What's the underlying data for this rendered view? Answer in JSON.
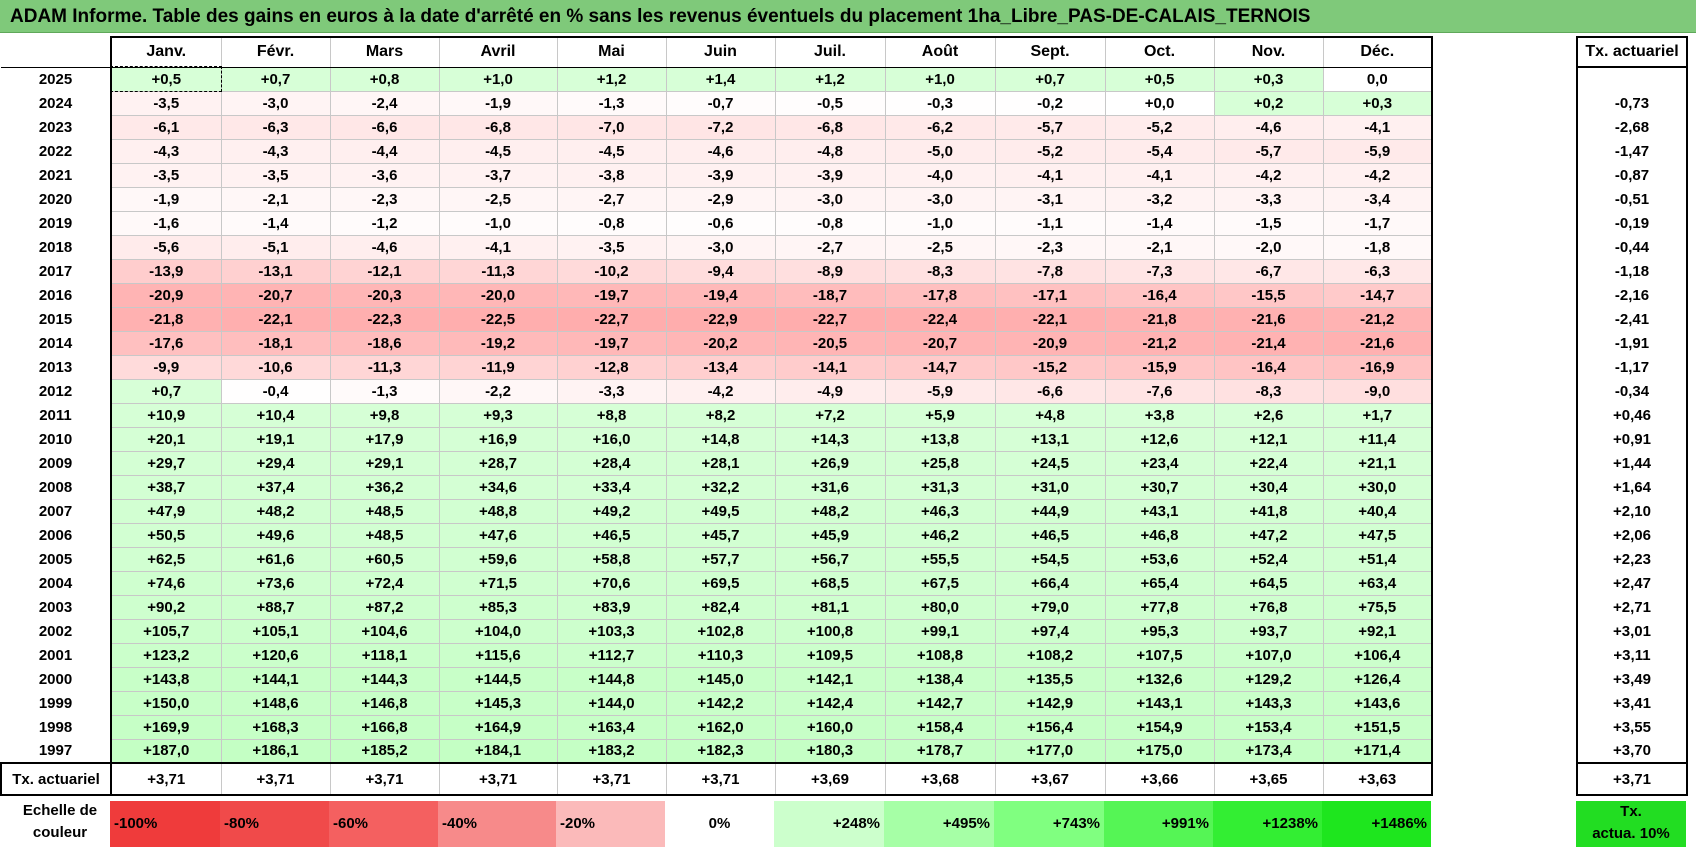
{
  "title": "ADAM Informe. Table des gains en euros à la date d'arrêté en % sans les revenus éventuels du placement 1ha_Libre_PAS-DE-CALAIS_TERNOIS",
  "months": [
    "Janv.",
    "Févr.",
    "Mars",
    "Avril",
    "Mai",
    "Juin",
    "Juil.",
    "Août",
    "Sept.",
    "Oct.",
    "Nov.",
    "Déc."
  ],
  "side_header": "Tx. actuariel",
  "rows": [
    {
      "year": "2025",
      "values": [
        "+0,5",
        "+0,7",
        "+0,8",
        "+1,0",
        "+1,2",
        "+1,4",
        "+1,2",
        "+1,0",
        "+0,7",
        "+0,5",
        "+0,3",
        "0,0"
      ],
      "tx": ""
    },
    {
      "year": "2024",
      "values": [
        "-3,5",
        "-3,0",
        "-2,4",
        "-1,9",
        "-1,3",
        "-0,7",
        "-0,5",
        "-0,3",
        "-0,2",
        "+0,0",
        "+0,2",
        "+0,3"
      ],
      "tx": "-0,73"
    },
    {
      "year": "2023",
      "values": [
        "-6,1",
        "-6,3",
        "-6,6",
        "-6,8",
        "-7,0",
        "-7,2",
        "-6,8",
        "-6,2",
        "-5,7",
        "-5,2",
        "-4,6",
        "-4,1"
      ],
      "tx": "-2,68"
    },
    {
      "year": "2022",
      "values": [
        "-4,3",
        "-4,3",
        "-4,4",
        "-4,5",
        "-4,5",
        "-4,6",
        "-4,8",
        "-5,0",
        "-5,2",
        "-5,4",
        "-5,7",
        "-5,9"
      ],
      "tx": "-1,47"
    },
    {
      "year": "2021",
      "values": [
        "-3,5",
        "-3,5",
        "-3,6",
        "-3,7",
        "-3,8",
        "-3,9",
        "-3,9",
        "-4,0",
        "-4,1",
        "-4,1",
        "-4,2",
        "-4,2"
      ],
      "tx": "-0,87"
    },
    {
      "year": "2020",
      "values": [
        "-1,9",
        "-2,1",
        "-2,3",
        "-2,5",
        "-2,7",
        "-2,9",
        "-3,0",
        "-3,0",
        "-3,1",
        "-3,2",
        "-3,3",
        "-3,4"
      ],
      "tx": "-0,51"
    },
    {
      "year": "2019",
      "values": [
        "-1,6",
        "-1,4",
        "-1,2",
        "-1,0",
        "-0,8",
        "-0,6",
        "-0,8",
        "-1,0",
        "-1,1",
        "-1,4",
        "-1,5",
        "-1,7"
      ],
      "tx": "-0,19"
    },
    {
      "year": "2018",
      "values": [
        "-5,6",
        "-5,1",
        "-4,6",
        "-4,1",
        "-3,5",
        "-3,0",
        "-2,7",
        "-2,5",
        "-2,3",
        "-2,1",
        "-2,0",
        "-1,8"
      ],
      "tx": "-0,44"
    },
    {
      "year": "2017",
      "values": [
        "-13,9",
        "-13,1",
        "-12,1",
        "-11,3",
        "-10,2",
        "-9,4",
        "-8,9",
        "-8,3",
        "-7,8",
        "-7,3",
        "-6,7",
        "-6,3"
      ],
      "tx": "-1,18"
    },
    {
      "year": "2016",
      "values": [
        "-20,9",
        "-20,7",
        "-20,3",
        "-20,0",
        "-19,7",
        "-19,4",
        "-18,7",
        "-17,8",
        "-17,1",
        "-16,4",
        "-15,5",
        "-14,7"
      ],
      "tx": "-2,16"
    },
    {
      "year": "2015",
      "values": [
        "-21,8",
        "-22,1",
        "-22,3",
        "-22,5",
        "-22,7",
        "-22,9",
        "-22,7",
        "-22,4",
        "-22,1",
        "-21,8",
        "-21,6",
        "-21,2"
      ],
      "tx": "-2,41"
    },
    {
      "year": "2014",
      "values": [
        "-17,6",
        "-18,1",
        "-18,6",
        "-19,2",
        "-19,7",
        "-20,2",
        "-20,5",
        "-20,7",
        "-20,9",
        "-21,2",
        "-21,4",
        "-21,6"
      ],
      "tx": "-1,91"
    },
    {
      "year": "2013",
      "values": [
        "-9,9",
        "-10,6",
        "-11,3",
        "-11,9",
        "-12,8",
        "-13,4",
        "-14,1",
        "-14,7",
        "-15,2",
        "-15,9",
        "-16,4",
        "-16,9"
      ],
      "tx": "-1,17"
    },
    {
      "year": "2012",
      "values": [
        "+0,7",
        "-0,4",
        "-1,3",
        "-2,2",
        "-3,3",
        "-4,2",
        "-4,9",
        "-5,9",
        "-6,6",
        "-7,6",
        "-8,3",
        "-9,0"
      ],
      "tx": "-0,34"
    },
    {
      "year": "2011",
      "values": [
        "+10,9",
        "+10,4",
        "+9,8",
        "+9,3",
        "+8,8",
        "+8,2",
        "+7,2",
        "+5,9",
        "+4,8",
        "+3,8",
        "+2,6",
        "+1,7"
      ],
      "tx": "+0,46"
    },
    {
      "year": "2010",
      "values": [
        "+20,1",
        "+19,1",
        "+17,9",
        "+16,9",
        "+16,0",
        "+14,8",
        "+14,3",
        "+13,8",
        "+13,1",
        "+12,6",
        "+12,1",
        "+11,4"
      ],
      "tx": "+0,91"
    },
    {
      "year": "2009",
      "values": [
        "+29,7",
        "+29,4",
        "+29,1",
        "+28,7",
        "+28,4",
        "+28,1",
        "+26,9",
        "+25,8",
        "+24,5",
        "+23,4",
        "+22,4",
        "+21,1"
      ],
      "tx": "+1,44"
    },
    {
      "year": "2008",
      "values": [
        "+38,7",
        "+37,4",
        "+36,2",
        "+34,6",
        "+33,4",
        "+32,2",
        "+31,6",
        "+31,3",
        "+31,0",
        "+30,7",
        "+30,4",
        "+30,0"
      ],
      "tx": "+1,64"
    },
    {
      "year": "2007",
      "values": [
        "+47,9",
        "+48,2",
        "+48,5",
        "+48,8",
        "+49,2",
        "+49,5",
        "+48,2",
        "+46,3",
        "+44,9",
        "+43,1",
        "+41,8",
        "+40,4"
      ],
      "tx": "+2,10"
    },
    {
      "year": "2006",
      "values": [
        "+50,5",
        "+49,6",
        "+48,5",
        "+47,6",
        "+46,5",
        "+45,7",
        "+45,9",
        "+46,2",
        "+46,5",
        "+46,8",
        "+47,2",
        "+47,5"
      ],
      "tx": "+2,06"
    },
    {
      "year": "2005",
      "values": [
        "+62,5",
        "+61,6",
        "+60,5",
        "+59,6",
        "+58,8",
        "+57,7",
        "+56,7",
        "+55,5",
        "+54,5",
        "+53,6",
        "+52,4",
        "+51,4"
      ],
      "tx": "+2,23"
    },
    {
      "year": "2004",
      "values": [
        "+74,6",
        "+73,6",
        "+72,4",
        "+71,5",
        "+70,6",
        "+69,5",
        "+68,5",
        "+67,5",
        "+66,4",
        "+65,4",
        "+64,5",
        "+63,4"
      ],
      "tx": "+2,47"
    },
    {
      "year": "2003",
      "values": [
        "+90,2",
        "+88,7",
        "+87,2",
        "+85,3",
        "+83,9",
        "+82,4",
        "+81,1",
        "+80,0",
        "+79,0",
        "+77,8",
        "+76,8",
        "+75,5"
      ],
      "tx": "+2,71"
    },
    {
      "year": "2002",
      "values": [
        "+105,7",
        "+105,1",
        "+104,6",
        "+104,0",
        "+103,3",
        "+102,8",
        "+100,8",
        "+99,1",
        "+97,4",
        "+95,3",
        "+93,7",
        "+92,1"
      ],
      "tx": "+3,01"
    },
    {
      "year": "2001",
      "values": [
        "+123,2",
        "+120,6",
        "+118,1",
        "+115,6",
        "+112,7",
        "+110,3",
        "+109,5",
        "+108,8",
        "+108,2",
        "+107,5",
        "+107,0",
        "+106,4"
      ],
      "tx": "+3,11"
    },
    {
      "year": "2000",
      "values": [
        "+143,8",
        "+144,1",
        "+144,3",
        "+144,5",
        "+144,8",
        "+145,0",
        "+142,1",
        "+138,4",
        "+135,5",
        "+132,6",
        "+129,2",
        "+126,4"
      ],
      "tx": "+3,49"
    },
    {
      "year": "1999",
      "values": [
        "+150,0",
        "+148,6",
        "+146,8",
        "+145,3",
        "+144,0",
        "+142,2",
        "+142,4",
        "+142,7",
        "+142,9",
        "+143,1",
        "+143,3",
        "+143,6"
      ],
      "tx": "+3,41"
    },
    {
      "year": "1998",
      "values": [
        "+169,9",
        "+168,3",
        "+166,8",
        "+164,9",
        "+163,4",
        "+162,0",
        "+160,0",
        "+158,4",
        "+156,4",
        "+154,9",
        "+153,4",
        "+151,5"
      ],
      "tx": "+3,55"
    },
    {
      "year": "1997",
      "values": [
        "+187,0",
        "+186,1",
        "+185,2",
        "+184,1",
        "+183,2",
        "+182,3",
        "+180,3",
        "+178,7",
        "+177,0",
        "+175,0",
        "+173,4",
        "+171,4"
      ],
      "tx": "+3,70"
    }
  ],
  "actuarial_row": {
    "label": "Tx. actuariel",
    "values": [
      "+3,71",
      "+3,71",
      "+3,71",
      "+3,71",
      "+3,71",
      "+3,71",
      "+3,69",
      "+3,68",
      "+3,67",
      "+3,66",
      "+3,65",
      "+3,63"
    ],
    "tx": "+3,71"
  },
  "scale": {
    "label_line1": "Echelle de",
    "label_line2": "couleur",
    "cells": [
      {
        "text": "-100%",
        "color": "#ef3b3b",
        "align": "left"
      },
      {
        "text": "-80%",
        "color": "#f04a4a",
        "align": "left"
      },
      {
        "text": "-60%",
        "color": "#f46060",
        "align": "left"
      },
      {
        "text": "-40%",
        "color": "#f78a8a",
        "align": "left"
      },
      {
        "text": "-20%",
        "color": "#fbbaba",
        "align": "left"
      },
      {
        "text": "0%",
        "color": "#ffffff",
        "align": "center"
      },
      {
        "text": "+248%",
        "color": "#ccffcc",
        "align": "right"
      },
      {
        "text": "+495%",
        "color": "#a6ffa6",
        "align": "right"
      },
      {
        "text": "+743%",
        "color": "#80ff80",
        "align": "right"
      },
      {
        "text": "+991%",
        "color": "#55f555",
        "align": "right"
      },
      {
        "text": "+1238%",
        "color": "#33ee33",
        "align": "right"
      },
      {
        "text": "+1486%",
        "color": "#1ee61e",
        "align": "right"
      }
    ],
    "act_line1": "Tx.",
    "act_line2": "actua. 10%",
    "act_color": "#22dd22"
  }
}
